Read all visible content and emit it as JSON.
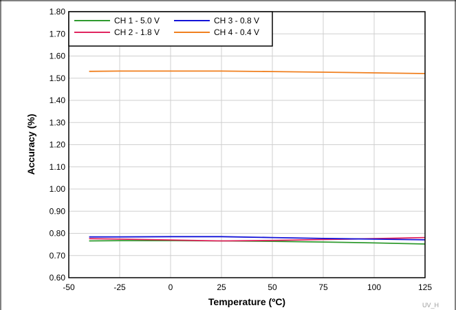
{
  "chart_data": {
    "type": "line",
    "title": "",
    "xlabel": "Temperature (ºC)",
    "ylabel": "Accuracy (%)",
    "xlim": [
      -50,
      125
    ],
    "ylim": [
      0.6,
      1.8
    ],
    "xticks": [
      -50,
      -25,
      0,
      25,
      50,
      75,
      100,
      125
    ],
    "xtick_labels": [
      "-50",
      "-25",
      "0",
      "25",
      "50",
      "75",
      "100",
      "125"
    ],
    "yticks": [
      0.6,
      0.7,
      0.8,
      0.9,
      1.0,
      1.1,
      1.2,
      1.3,
      1.4,
      1.5,
      1.6,
      1.7,
      1.8
    ],
    "ytick_labels": [
      "0.60",
      "0.70",
      "0.80",
      "0.90",
      "1.00",
      "1.10",
      "1.20",
      "1.30",
      "1.40",
      "1.50",
      "1.60",
      "1.70",
      "1.80"
    ],
    "grid": true,
    "legend_position": "top-left",
    "series": [
      {
        "name": "CH 1 - 5.0 V",
        "color": "#2e9a2e",
        "x": [
          -40,
          -25,
          0,
          25,
          50,
          75,
          100,
          125
        ],
        "y": [
          0.766,
          0.767,
          0.767,
          0.766,
          0.764,
          0.761,
          0.757,
          0.752
        ]
      },
      {
        "name": "CH 2 - 1.8 V",
        "color": "#e0245e",
        "x": [
          -40,
          -25,
          0,
          25,
          50,
          75,
          100,
          125
        ],
        "y": [
          0.776,
          0.774,
          0.77,
          0.766,
          0.768,
          0.772,
          0.776,
          0.781
        ]
      },
      {
        "name": "CH 3 - 0.8 V",
        "color": "#1212d8",
        "x": [
          -40,
          -25,
          0,
          25,
          50,
          75,
          100,
          125
        ],
        "y": [
          0.784,
          0.784,
          0.785,
          0.785,
          0.781,
          0.777,
          0.774,
          0.771
        ]
      },
      {
        "name": "CH 4 - 0.4 V",
        "color": "#f07f1e",
        "x": [
          -40,
          -25,
          0,
          25,
          50,
          75,
          100,
          125
        ],
        "y": [
          1.531,
          1.532,
          1.532,
          1.532,
          1.53,
          1.527,
          1.524,
          1.521
        ]
      }
    ],
    "footnote": "UV_H"
  }
}
